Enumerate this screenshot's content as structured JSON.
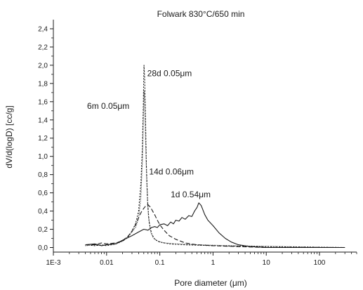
{
  "chart_data": {
    "type": "line",
    "title": "Folwark 830°C/650 min",
    "xlabel": "Pore diameter (μm)",
    "ylabel": "dV/d(logD) [cc/g]",
    "x_scale": "log",
    "xlim": [
      0.001,
      500
    ],
    "ylim": [
      -0.05,
      2.5
    ],
    "x_ticks": [
      {
        "value": 0.001,
        "label": "1E-3"
      },
      {
        "value": 0.01,
        "label": "0.01"
      },
      {
        "value": 0.1,
        "label": "0.1"
      },
      {
        "value": 1,
        "label": "1"
      },
      {
        "value": 10,
        "label": "10"
      },
      {
        "value": 100,
        "label": "100"
      }
    ],
    "y_ticks": [
      {
        "value": 0.0,
        "label": "0,0"
      },
      {
        "value": 0.2,
        "label": "0,2"
      },
      {
        "value": 0.4,
        "label": "0,4"
      },
      {
        "value": 0.6,
        "label": "0,6"
      },
      {
        "value": 0.8,
        "label": "0,8"
      },
      {
        "value": 1.0,
        "label": "1,0"
      },
      {
        "value": 1.2,
        "label": "1,2"
      },
      {
        "value": 1.4,
        "label": "1,4"
      },
      {
        "value": 1.6,
        "label": "1,6"
      },
      {
        "value": 1.8,
        "label": "1,8"
      },
      {
        "value": 2.0,
        "label": "2,0"
      },
      {
        "value": 2.2,
        "label": "2,2"
      },
      {
        "value": 2.4,
        "label": "2,4"
      }
    ],
    "grid": false,
    "legend": "none",
    "series": [
      {
        "style": "solid",
        "color": "#1a1a1a",
        "points": [
          [
            0.004,
            0.03
          ],
          [
            0.006,
            0.04
          ],
          [
            0.008,
            0.02
          ],
          [
            0.01,
            0.03
          ],
          [
            0.015,
            0.04
          ],
          [
            0.02,
            0.08
          ],
          [
            0.03,
            0.13
          ],
          [
            0.04,
            0.17
          ],
          [
            0.05,
            0.2
          ],
          [
            0.06,
            0.19
          ],
          [
            0.07,
            0.22
          ],
          [
            0.08,
            0.23
          ],
          [
            0.09,
            0.22
          ],
          [
            0.1,
            0.25
          ],
          [
            0.12,
            0.26
          ],
          [
            0.14,
            0.24
          ],
          [
            0.16,
            0.28
          ],
          [
            0.18,
            0.26
          ],
          [
            0.2,
            0.3
          ],
          [
            0.23,
            0.29
          ],
          [
            0.26,
            0.33
          ],
          [
            0.3,
            0.31
          ],
          [
            0.35,
            0.35
          ],
          [
            0.4,
            0.34
          ],
          [
            0.45,
            0.4
          ],
          [
            0.5,
            0.44
          ],
          [
            0.54,
            0.49
          ],
          [
            0.6,
            0.46
          ],
          [
            0.7,
            0.36
          ],
          [
            0.8,
            0.3
          ],
          [
            1.0,
            0.24
          ],
          [
            1.3,
            0.16
          ],
          [
            1.7,
            0.1
          ],
          [
            2.2,
            0.06
          ],
          [
            3,
            0.03
          ],
          [
            5,
            0.01
          ],
          [
            10,
            0.0
          ],
          [
            50,
            0.0
          ],
          [
            300,
            0.0
          ]
        ]
      },
      {
        "style": "dashed",
        "color": "#1a1a1a",
        "points": [
          [
            0.004,
            0.03
          ],
          [
            0.006,
            0.03
          ],
          [
            0.008,
            0.05
          ],
          [
            0.01,
            0.04
          ],
          [
            0.015,
            0.05
          ],
          [
            0.02,
            0.07
          ],
          [
            0.025,
            0.12
          ],
          [
            0.03,
            0.18
          ],
          [
            0.035,
            0.25
          ],
          [
            0.04,
            0.33
          ],
          [
            0.045,
            0.39
          ],
          [
            0.05,
            0.43
          ],
          [
            0.055,
            0.46
          ],
          [
            0.06,
            0.47
          ],
          [
            0.065,
            0.45
          ],
          [
            0.07,
            0.42
          ],
          [
            0.08,
            0.36
          ],
          [
            0.09,
            0.3
          ],
          [
            0.1,
            0.25
          ],
          [
            0.12,
            0.19
          ],
          [
            0.15,
            0.13
          ],
          [
            0.2,
            0.09
          ],
          [
            0.3,
            0.05
          ],
          [
            0.5,
            0.03
          ],
          [
            1,
            0.02
          ],
          [
            3,
            0.01
          ],
          [
            10,
            0.0
          ],
          [
            100,
            0.0
          ],
          [
            300,
            0.0
          ]
        ]
      },
      {
        "style": "dotted",
        "color": "#1a1a1a",
        "points": [
          [
            0.004,
            0.03
          ],
          [
            0.006,
            0.02
          ],
          [
            0.008,
            0.03
          ],
          [
            0.01,
            0.02
          ],
          [
            0.015,
            0.04
          ],
          [
            0.02,
            0.07
          ],
          [
            0.025,
            0.11
          ],
          [
            0.03,
            0.18
          ],
          [
            0.035,
            0.26
          ],
          [
            0.04,
            0.4
          ],
          [
            0.044,
            0.7
          ],
          [
            0.047,
            1.1
          ],
          [
            0.049,
            1.55
          ],
          [
            0.05,
            1.9
          ],
          [
            0.0505,
            2.0
          ],
          [
            0.052,
            1.85
          ],
          [
            0.054,
            1.4
          ],
          [
            0.056,
            0.9
          ],
          [
            0.059,
            0.5
          ],
          [
            0.063,
            0.28
          ],
          [
            0.07,
            0.15
          ],
          [
            0.08,
            0.09
          ],
          [
            0.1,
            0.06
          ],
          [
            0.15,
            0.04
          ],
          [
            0.3,
            0.03
          ],
          [
            1,
            0.02
          ],
          [
            10,
            0.01
          ],
          [
            300,
            0.0
          ]
        ]
      },
      {
        "style": "dotted-fine",
        "color": "#1a1a1a",
        "points": [
          [
            0.004,
            0.02
          ],
          [
            0.006,
            0.03
          ],
          [
            0.008,
            0.02
          ],
          [
            0.01,
            0.03
          ],
          [
            0.015,
            0.05
          ],
          [
            0.02,
            0.08
          ],
          [
            0.025,
            0.12
          ],
          [
            0.03,
            0.17
          ],
          [
            0.035,
            0.22
          ],
          [
            0.04,
            0.32
          ],
          [
            0.044,
            0.55
          ],
          [
            0.047,
            0.95
          ],
          [
            0.049,
            1.4
          ],
          [
            0.0505,
            1.72
          ],
          [
            0.052,
            1.6
          ],
          [
            0.054,
            1.2
          ],
          [
            0.057,
            0.7
          ],
          [
            0.061,
            0.35
          ],
          [
            0.067,
            0.18
          ],
          [
            0.075,
            0.11
          ],
          [
            0.09,
            0.07
          ],
          [
            0.12,
            0.05
          ],
          [
            0.2,
            0.04
          ],
          [
            0.5,
            0.03
          ],
          [
            2,
            0.02
          ],
          [
            20,
            0.01
          ],
          [
            300,
            0.0
          ]
        ]
      }
    ],
    "annotations": [
      {
        "text": "28d 0.05μm",
        "x": 0.058,
        "y": 1.88
      },
      {
        "text": "6m  0.05μm",
        "x": 0.0043,
        "y": 1.52
      },
      {
        "text": "14d 0.06μm",
        "x": 0.063,
        "y": 0.8
      },
      {
        "text": "1d 0.54μm",
        "x": 0.16,
        "y": 0.55
      }
    ]
  }
}
